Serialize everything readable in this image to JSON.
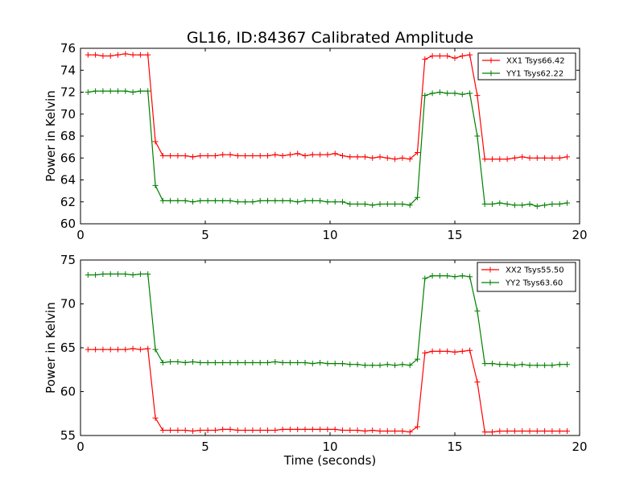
{
  "figure_title": "GL16, ID:84367 Calibrated Amplitude",
  "x_axis_label": "Time (seconds)",
  "chart_data": [
    {
      "type": "line",
      "ylabel": "Power in Kelvin",
      "xlabel": "",
      "xlim": [
        0,
        20
      ],
      "ylim": [
        60,
        76
      ],
      "xticks": [
        0,
        5,
        10,
        15,
        20
      ],
      "yticks": [
        60,
        62,
        64,
        66,
        68,
        70,
        72,
        74,
        76
      ],
      "legend_position": "top-right",
      "grid": false,
      "x": [
        0.3,
        0.6,
        0.9,
        1.2,
        1.5,
        1.8,
        2.1,
        2.4,
        2.7,
        3.0,
        3.3,
        3.6,
        3.9,
        4.2,
        4.5,
        4.8,
        5.1,
        5.4,
        5.7,
        6.0,
        6.3,
        6.6,
        6.9,
        7.2,
        7.5,
        7.8,
        8.1,
        8.4,
        8.7,
        9.0,
        9.3,
        9.6,
        9.9,
        10.2,
        10.5,
        10.8,
        11.1,
        11.4,
        11.7,
        12.0,
        12.3,
        12.6,
        12.9,
        13.2,
        13.5,
        13.8,
        14.1,
        14.4,
        14.7,
        15.0,
        15.3,
        15.6,
        15.9,
        16.2,
        16.5,
        16.8,
        17.1,
        17.4,
        17.7,
        18.0,
        18.3,
        18.6,
        18.9,
        19.2,
        19.5
      ],
      "series": [
        {
          "name": "XX1 Tsys66.42",
          "color": "#ff0000",
          "values": [
            75.4,
            75.4,
            75.3,
            75.3,
            75.4,
            75.5,
            75.4,
            75.4,
            75.4,
            67.5,
            66.2,
            66.2,
            66.2,
            66.2,
            66.1,
            66.2,
            66.2,
            66.2,
            66.3,
            66.3,
            66.2,
            66.2,
            66.2,
            66.2,
            66.2,
            66.3,
            66.2,
            66.3,
            66.4,
            66.2,
            66.3,
            66.3,
            66.3,
            66.4,
            66.2,
            66.1,
            66.1,
            66.1,
            66.0,
            66.1,
            66.0,
            65.9,
            66.0,
            65.9,
            66.5,
            75.0,
            75.3,
            75.3,
            75.3,
            75.1,
            75.3,
            75.4,
            71.7,
            65.9,
            65.9,
            65.9,
            65.9,
            66.0,
            66.1,
            66.0,
            66.0,
            66.0,
            66.0,
            66.0,
            66.1
          ]
        },
        {
          "name": "YY1 Tsys62.22",
          "color": "#008000",
          "values": [
            72.0,
            72.1,
            72.1,
            72.1,
            72.1,
            72.1,
            72.0,
            72.1,
            72.1,
            63.5,
            62.1,
            62.1,
            62.1,
            62.1,
            62.0,
            62.1,
            62.1,
            62.1,
            62.1,
            62.1,
            62.0,
            62.0,
            62.0,
            62.1,
            62.1,
            62.1,
            62.1,
            62.1,
            62.0,
            62.1,
            62.1,
            62.1,
            62.0,
            62.0,
            62.0,
            61.8,
            61.8,
            61.8,
            61.7,
            61.8,
            61.8,
            61.8,
            61.8,
            61.7,
            62.4,
            71.7,
            71.9,
            72.0,
            71.9,
            71.9,
            71.8,
            71.9,
            68.0,
            61.8,
            61.8,
            61.9,
            61.8,
            61.7,
            61.7,
            61.8,
            61.6,
            61.7,
            61.8,
            61.8,
            61.9
          ]
        }
      ]
    },
    {
      "type": "line",
      "ylabel": "Power in Kelvin",
      "xlabel": "Time (seconds)",
      "xlim": [
        0,
        20
      ],
      "ylim": [
        55,
        75
      ],
      "xticks": [
        0,
        5,
        10,
        15,
        20
      ],
      "yticks": [
        55,
        60,
        65,
        70,
        75
      ],
      "legend_position": "top-right",
      "grid": false,
      "x": [
        0.3,
        0.6,
        0.9,
        1.2,
        1.5,
        1.8,
        2.1,
        2.4,
        2.7,
        3.0,
        3.3,
        3.6,
        3.9,
        4.2,
        4.5,
        4.8,
        5.1,
        5.4,
        5.7,
        6.0,
        6.3,
        6.6,
        6.9,
        7.2,
        7.5,
        7.8,
        8.1,
        8.4,
        8.7,
        9.0,
        9.3,
        9.6,
        9.9,
        10.2,
        10.5,
        10.8,
        11.1,
        11.4,
        11.7,
        12.0,
        12.3,
        12.6,
        12.9,
        13.2,
        13.5,
        13.8,
        14.1,
        14.4,
        14.7,
        15.0,
        15.3,
        15.6,
        15.9,
        16.2,
        16.5,
        16.8,
        17.1,
        17.4,
        17.7,
        18.0,
        18.3,
        18.6,
        18.9,
        19.2,
        19.5
      ],
      "series": [
        {
          "name": "XX2 Tsys55.50",
          "color": "#ff0000",
          "values": [
            64.8,
            64.8,
            64.8,
            64.8,
            64.8,
            64.8,
            64.9,
            64.8,
            64.9,
            57.0,
            55.6,
            55.6,
            55.6,
            55.6,
            55.5,
            55.6,
            55.6,
            55.6,
            55.7,
            55.7,
            55.6,
            55.6,
            55.6,
            55.6,
            55.6,
            55.6,
            55.7,
            55.7,
            55.7,
            55.7,
            55.7,
            55.7,
            55.7,
            55.7,
            55.6,
            55.6,
            55.6,
            55.5,
            55.6,
            55.5,
            55.5,
            55.5,
            55.5,
            55.4,
            56.0,
            64.4,
            64.6,
            64.6,
            64.6,
            64.5,
            64.6,
            64.7,
            61.1,
            55.4,
            55.4,
            55.5,
            55.5,
            55.5,
            55.5,
            55.5,
            55.5,
            55.5,
            55.5,
            55.5,
            55.5
          ]
        },
        {
          "name": "YY2 Tsys63.60",
          "color": "#008000",
          "values": [
            73.3,
            73.3,
            73.4,
            73.4,
            73.4,
            73.4,
            73.3,
            73.4,
            73.4,
            64.8,
            63.3,
            63.4,
            63.4,
            63.3,
            63.4,
            63.3,
            63.3,
            63.3,
            63.3,
            63.3,
            63.3,
            63.3,
            63.3,
            63.3,
            63.3,
            63.4,
            63.3,
            63.3,
            63.3,
            63.3,
            63.2,
            63.3,
            63.2,
            63.2,
            63.2,
            63.1,
            63.1,
            63.0,
            63.0,
            63.0,
            63.1,
            63.0,
            63.1,
            63.0,
            63.7,
            72.9,
            73.2,
            73.2,
            73.2,
            73.1,
            73.2,
            73.1,
            69.2,
            63.2,
            63.2,
            63.1,
            63.1,
            63.0,
            63.1,
            63.0,
            63.0,
            63.0,
            63.0,
            63.1,
            63.1
          ]
        }
      ]
    }
  ]
}
